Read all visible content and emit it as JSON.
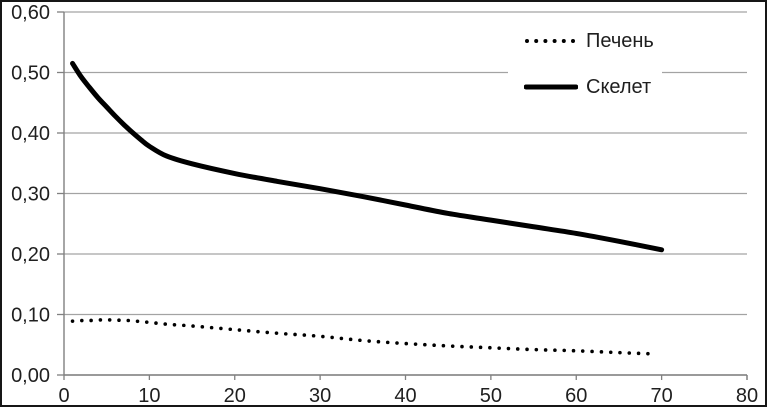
{
  "chart_data": {
    "type": "line",
    "title": "",
    "xlabel": "",
    "ylabel": "",
    "xlim": [
      0,
      80
    ],
    "ylim": [
      0,
      0.6
    ],
    "x_ticks": [
      0,
      10,
      20,
      30,
      40,
      50,
      60,
      70,
      80
    ],
    "x_tick_labels": [
      "0",
      "10",
      "20",
      "30",
      "40",
      "50",
      "60",
      "70",
      "80"
    ],
    "y_ticks": [
      0,
      0.1,
      0.2,
      0.3,
      0.4,
      0.5,
      0.6
    ],
    "y_tick_labels": [
      "0,00",
      "0,10",
      "0,20",
      "0,30",
      "0,40",
      "0,50",
      "0,60"
    ],
    "grid": "horizontal",
    "legend_position": "top-right-inside",
    "series": [
      {
        "name": "Печень",
        "style": "dotted",
        "color": "#000000",
        "x": [
          1,
          2,
          3,
          4,
          5,
          6,
          7,
          8,
          9,
          10,
          12,
          15,
          20,
          25,
          30,
          35,
          40,
          45,
          50,
          55,
          60,
          65,
          69
        ],
        "y": [
          0.089,
          0.09,
          0.09,
          0.091,
          0.091,
          0.091,
          0.09,
          0.09,
          0.088,
          0.087,
          0.084,
          0.081,
          0.075,
          0.069,
          0.064,
          0.057,
          0.052,
          0.048,
          0.045,
          0.042,
          0.04,
          0.037,
          0.035
        ]
      },
      {
        "name": "Скелет",
        "style": "solid",
        "color": "#000000",
        "x": [
          1,
          2,
          3,
          4,
          5,
          6,
          7,
          8,
          9,
          10,
          12,
          15,
          20,
          25,
          30,
          35,
          40,
          45,
          50,
          55,
          60,
          65,
          70
        ],
        "y": [
          0.515,
          0.493,
          0.475,
          0.458,
          0.443,
          0.428,
          0.414,
          0.401,
          0.389,
          0.378,
          0.362,
          0.349,
          0.333,
          0.32,
          0.308,
          0.295,
          0.281,
          0.267,
          0.256,
          0.245,
          0.234,
          0.221,
          0.207
        ]
      }
    ]
  },
  "colors": {
    "background": "#ffffff",
    "border": "#161616",
    "gridline": "#a3a3a3",
    "axis": "#808080",
    "text": "#1f1f1f",
    "series": "#000000"
  }
}
